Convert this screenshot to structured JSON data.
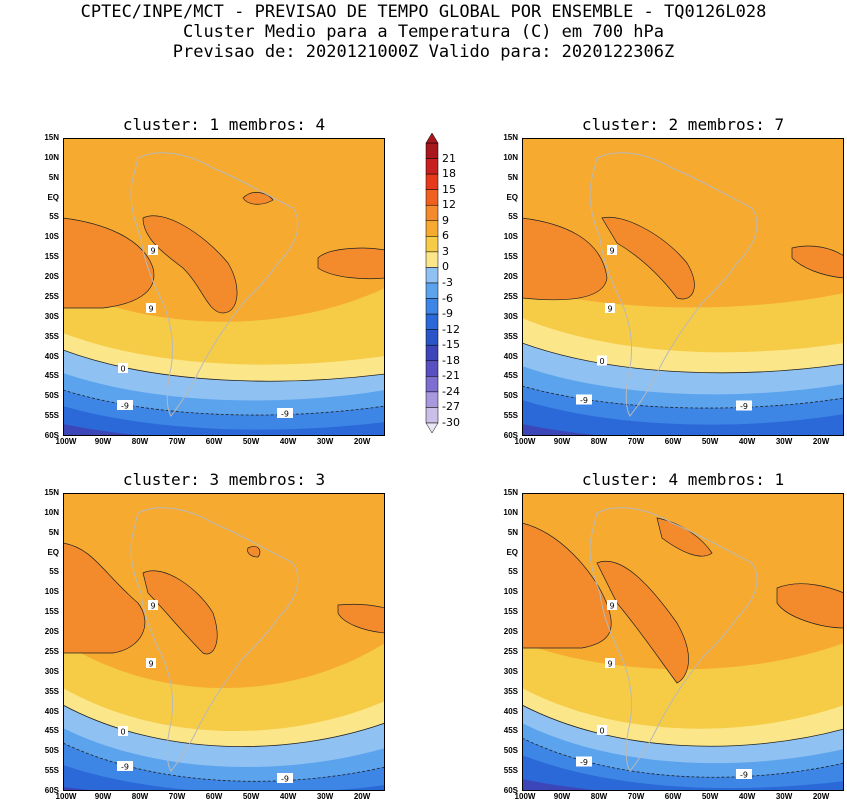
{
  "header": {
    "line1": "CPTEC/INPE/MCT - PREVISAO DE TEMPO GLOBAL POR ENSEMBLE - TQ0126L028",
    "line2": "Cluster Medio para a Temperatura (C) em 700 hPa",
    "line3": "Previsao de: 2020121000Z   Valido para: 2020122306Z"
  },
  "lat_labels": [
    "15N",
    "10N",
    "5N",
    "EQ",
    "5S",
    "10S",
    "15S",
    "20S",
    "25S",
    "30S",
    "35S",
    "40S",
    "45S",
    "50S",
    "55S",
    "60S"
  ],
  "lon_labels": [
    "100W",
    "90W",
    "80W",
    "70W",
    "60W",
    "50W",
    "40W",
    "30W",
    "20W"
  ],
  "colorbar": {
    "levels": [
      "21",
      "18",
      "15",
      "12",
      "9",
      "6",
      "3",
      "0",
      "-3",
      "-6",
      "-9",
      "-12",
      "-15",
      "-18",
      "-21",
      "-24",
      "-27",
      "-30"
    ],
    "colors": [
      "#a8171c",
      "#c81f1f",
      "#e63a1a",
      "#f0601e",
      "#f38a2c",
      "#f6aa30",
      "#f6cb46",
      "#fbe68a",
      "#8fc2f2",
      "#5ca3ee",
      "#3d86e6",
      "#2b69d8",
      "#2a55c8",
      "#3c46b8",
      "#5a4fc0",
      "#7f6ed0",
      "#a898de",
      "#c9bfe8"
    ]
  },
  "contour_labels": {
    "nine": "9",
    "zero": "0",
    "minus_nine": "-9"
  },
  "panels": [
    {
      "title": "cluster: 1   membros: 4"
    },
    {
      "title": "cluster: 2   membros: 7"
    },
    {
      "title": "cluster: 3   membros: 3"
    },
    {
      "title": "cluster: 4   membros: 1"
    }
  ]
}
